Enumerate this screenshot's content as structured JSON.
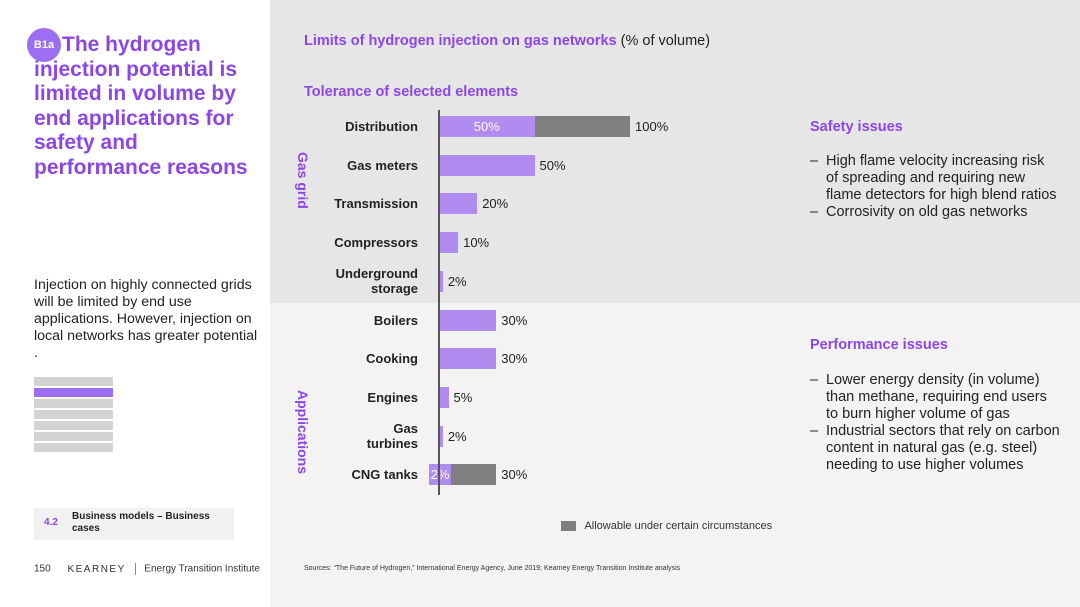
{
  "badge": "B1a",
  "title": "The hydrogen injection potential is limited in volume by end applications for safety and performance reasons",
  "summary": "Injection on highly connected grids will be limited by end use applications. However, injection on local networks has greater potential .",
  "section": {
    "number": "4.2",
    "name": "Business models – Business cases"
  },
  "footer": {
    "page": "150",
    "brand": "KEARNEY",
    "institute": "Energy Transition Institute"
  },
  "chart_title": {
    "highlight": "Limits of hydrogen injection on gas networks",
    "rest": "(% of volume)"
  },
  "chart_subtitle": "Tolerance of selected elements",
  "chart_data": {
    "type": "bar",
    "orientation": "horizontal",
    "title": "Limits of hydrogen injection on gas networks (% of volume)",
    "subtitle": "Tolerance of selected elements",
    "xlim": [
      0,
      100
    ],
    "groups": [
      "Gas grid",
      "Applications"
    ],
    "categories": [
      {
        "label": "Distribution",
        "group": "Gas grid",
        "value": 50,
        "value_label": "50%",
        "allowable_max": 100,
        "allowable_label": "100%"
      },
      {
        "label": "Gas meters",
        "group": "Gas grid",
        "value": 50,
        "value_label": "50%"
      },
      {
        "label": "Transmission",
        "group": "Gas grid",
        "value": 20,
        "value_label": "20%"
      },
      {
        "label": "Compressors",
        "group": "Gas grid",
        "value": 10,
        "value_label": "10%"
      },
      {
        "label": "Underground storage",
        "group": "Gas grid",
        "value": 2,
        "value_label": "2%"
      },
      {
        "label": "Boilers",
        "group": "Applications",
        "value": 30,
        "value_label": "30%"
      },
      {
        "label": "Cooking",
        "group": "Applications",
        "value": 30,
        "value_label": "30%"
      },
      {
        "label": "Engines",
        "group": "Applications",
        "value": 5,
        "value_label": "5%"
      },
      {
        "label": "Gas turbines",
        "group": "Applications",
        "value": 2,
        "value_label": "2%"
      },
      {
        "label": "CNG tanks",
        "group": "Applications",
        "value": 2,
        "value_label": "2%",
        "allowable_max": 30,
        "allowable_label": "30%"
      }
    ],
    "legend": "Allowable under certain circumstances",
    "colors": {
      "tolerance": "#b08bf0",
      "allowable": "#7f7f7f"
    }
  },
  "safety": {
    "title": "Safety issues",
    "items": [
      "High flame velocity increasing risk of spreading and requiring new flame detectors for high blend ratios",
      "Corrosivity on old gas networks"
    ]
  },
  "performance": {
    "title": "Performance issues",
    "items": [
      "Lower energy density (in volume) than methane, requiring end users to burn higher volume of gas",
      "Industrial sectors that rely on carbon content in natural gas (e.g. steel) needing to use higher volumes"
    ]
  },
  "sources": "Sources: “The Future of Hydrogen,” International Energy Agency, June 2019; Kearney Energy Transition Institute analysis",
  "colors": {
    "accent": "#8c46e6",
    "bar_purple": "#b08bf0",
    "bar_grey": "#7f7f7f",
    "panel_top": "#e6e6e6",
    "panel_bottom": "#f3f3f3"
  }
}
